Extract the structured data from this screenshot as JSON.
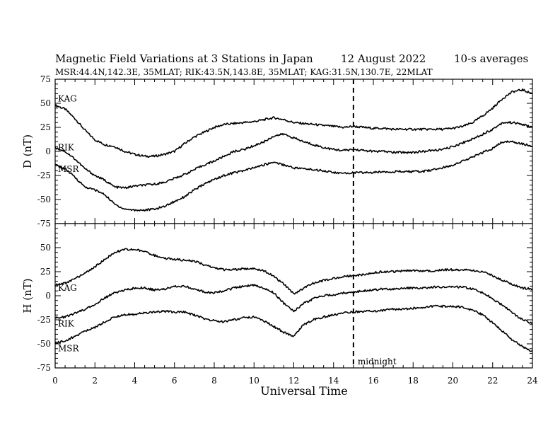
{
  "header": {
    "title_left": "Magnetic Field Variations at 3 Stations in Japan",
    "title_date": "12  August  2022",
    "title_avg": "10-s averages",
    "subtitle": "MSR:44.4N,142.3E, 35MLAT;  RIK:43.5N,143.8E, 35MLAT;  KAG:31.5N,130.7E, 22MLAT"
  },
  "chart_data": [
    {
      "type": "line",
      "id": "D",
      "ylabel": "D (nT)",
      "ylim": [
        -75,
        75
      ],
      "yticks": [
        75,
        50,
        25,
        0,
        -25,
        -50,
        -75
      ],
      "x": [
        0,
        0.5,
        1,
        1.5,
        2,
        2.5,
        3,
        3.5,
        4,
        4.5,
        5,
        5.5,
        6,
        6.5,
        7,
        7.5,
        8,
        8.5,
        9,
        9.5,
        10,
        10.5,
        11,
        11.5,
        12,
        12.5,
        13,
        13.5,
        14,
        14.5,
        15,
        15.5,
        16,
        16.5,
        17,
        17.5,
        18,
        18.5,
        19,
        19.5,
        20,
        20.5,
        21,
        21.5,
        22,
        22.5,
        23,
        23.5,
        24
      ],
      "series": [
        {
          "name": "KAG",
          "values": [
            48,
            44,
            34,
            22,
            12,
            7,
            5,
            0,
            -3,
            -5,
            -5,
            -3,
            0,
            8,
            15,
            20,
            25,
            28,
            29,
            30,
            31,
            33,
            35,
            33,
            30,
            29,
            28,
            27,
            26,
            25,
            26,
            25,
            24,
            24,
            23,
            23,
            23,
            23,
            23,
            23,
            24,
            26,
            30,
            37,
            45,
            55,
            62,
            64,
            60
          ]
        },
        {
          "name": "RIK",
          "values": [
            4,
            0,
            -8,
            -18,
            -25,
            -30,
            -37,
            -38,
            -36,
            -35,
            -34,
            -32,
            -28,
            -24,
            -19,
            -14,
            -10,
            -5,
            0,
            2,
            6,
            10,
            16,
            18,
            14,
            10,
            7,
            4,
            2,
            1,
            2,
            1,
            0,
            0,
            -1,
            -1,
            -1,
            0,
            1,
            2,
            5,
            9,
            13,
            18,
            23,
            30,
            30,
            28,
            25
          ]
        },
        {
          "name": "MSR",
          "values": [
            -14,
            -18,
            -27,
            -37,
            -40,
            -45,
            -55,
            -60,
            -61,
            -61,
            -60,
            -57,
            -52,
            -47,
            -40,
            -34,
            -29,
            -25,
            -22,
            -20,
            -17,
            -14,
            -11,
            -14,
            -17,
            -18,
            -19,
            -20,
            -22,
            -23,
            -22,
            -22,
            -22,
            -21,
            -21,
            -21,
            -21,
            -21,
            -19,
            -17,
            -14,
            -10,
            -6,
            -1,
            3,
            10,
            10,
            8,
            5
          ]
        }
      ]
    },
    {
      "type": "line",
      "id": "H",
      "ylabel": "H (nT)",
      "ylim": [
        -75,
        75
      ],
      "yticks": [
        50,
        25,
        0,
        -25,
        -50,
        -75
      ],
      "xlabel": "Universal Time",
      "xlim": [
        0,
        24
      ],
      "xticks": [
        0,
        2,
        4,
        6,
        8,
        10,
        12,
        14,
        16,
        18,
        20,
        22,
        24
      ],
      "x": [
        0,
        0.5,
        1,
        1.5,
        2,
        2.5,
        3,
        3.5,
        4,
        4.5,
        5,
        5.5,
        6,
        6.5,
        7,
        7.5,
        8,
        8.5,
        9,
        9.5,
        10,
        10.5,
        11,
        11.5,
        12,
        12.5,
        13,
        13.5,
        14,
        14.5,
        15,
        15.5,
        16,
        16.5,
        17,
        17.5,
        18,
        18.5,
        19,
        19.5,
        20,
        20.5,
        21,
        21.5,
        22,
        22.5,
        23,
        23.5,
        24
      ],
      "series": [
        {
          "name": "KAG",
          "values": [
            11,
            13,
            18,
            23,
            30,
            38,
            45,
            48,
            48,
            46,
            42,
            39,
            38,
            37,
            36,
            32,
            29,
            27,
            27,
            28,
            28,
            26,
            20,
            12,
            2,
            8,
            13,
            16,
            18,
            20,
            21,
            22,
            24,
            25,
            25,
            26,
            26,
            26,
            26,
            27,
            27,
            27,
            26,
            25,
            21,
            16,
            12,
            8,
            7
          ]
        },
        {
          "name": "RIK",
          "values": [
            -23,
            -22,
            -18,
            -14,
            -9,
            -2,
            3,
            6,
            8,
            8,
            6,
            7,
            10,
            10,
            7,
            4,
            3,
            5,
            8,
            10,
            11,
            8,
            3,
            -8,
            -16,
            -8,
            -3,
            0,
            1,
            3,
            4,
            5,
            6,
            7,
            7,
            8,
            8,
            8,
            9,
            9,
            9,
            9,
            7,
            3,
            -3,
            -10,
            -18,
            -25,
            -29
          ]
        },
        {
          "name": "MSR",
          "values": [
            -49,
            -47,
            -42,
            -37,
            -33,
            -27,
            -22,
            -20,
            -19,
            -18,
            -17,
            -16,
            -17,
            -17,
            -20,
            -24,
            -26,
            -27,
            -25,
            -23,
            -22,
            -26,
            -32,
            -38,
            -42,
            -30,
            -25,
            -22,
            -20,
            -18,
            -17,
            -16,
            -16,
            -15,
            -14,
            -14,
            -13,
            -12,
            -11,
            -11,
            -11,
            -12,
            -15,
            -20,
            -28,
            -37,
            -46,
            -53,
            -58
          ]
        }
      ]
    }
  ],
  "annotations": {
    "midnight_x": 15,
    "midnight_label": "midnight"
  }
}
